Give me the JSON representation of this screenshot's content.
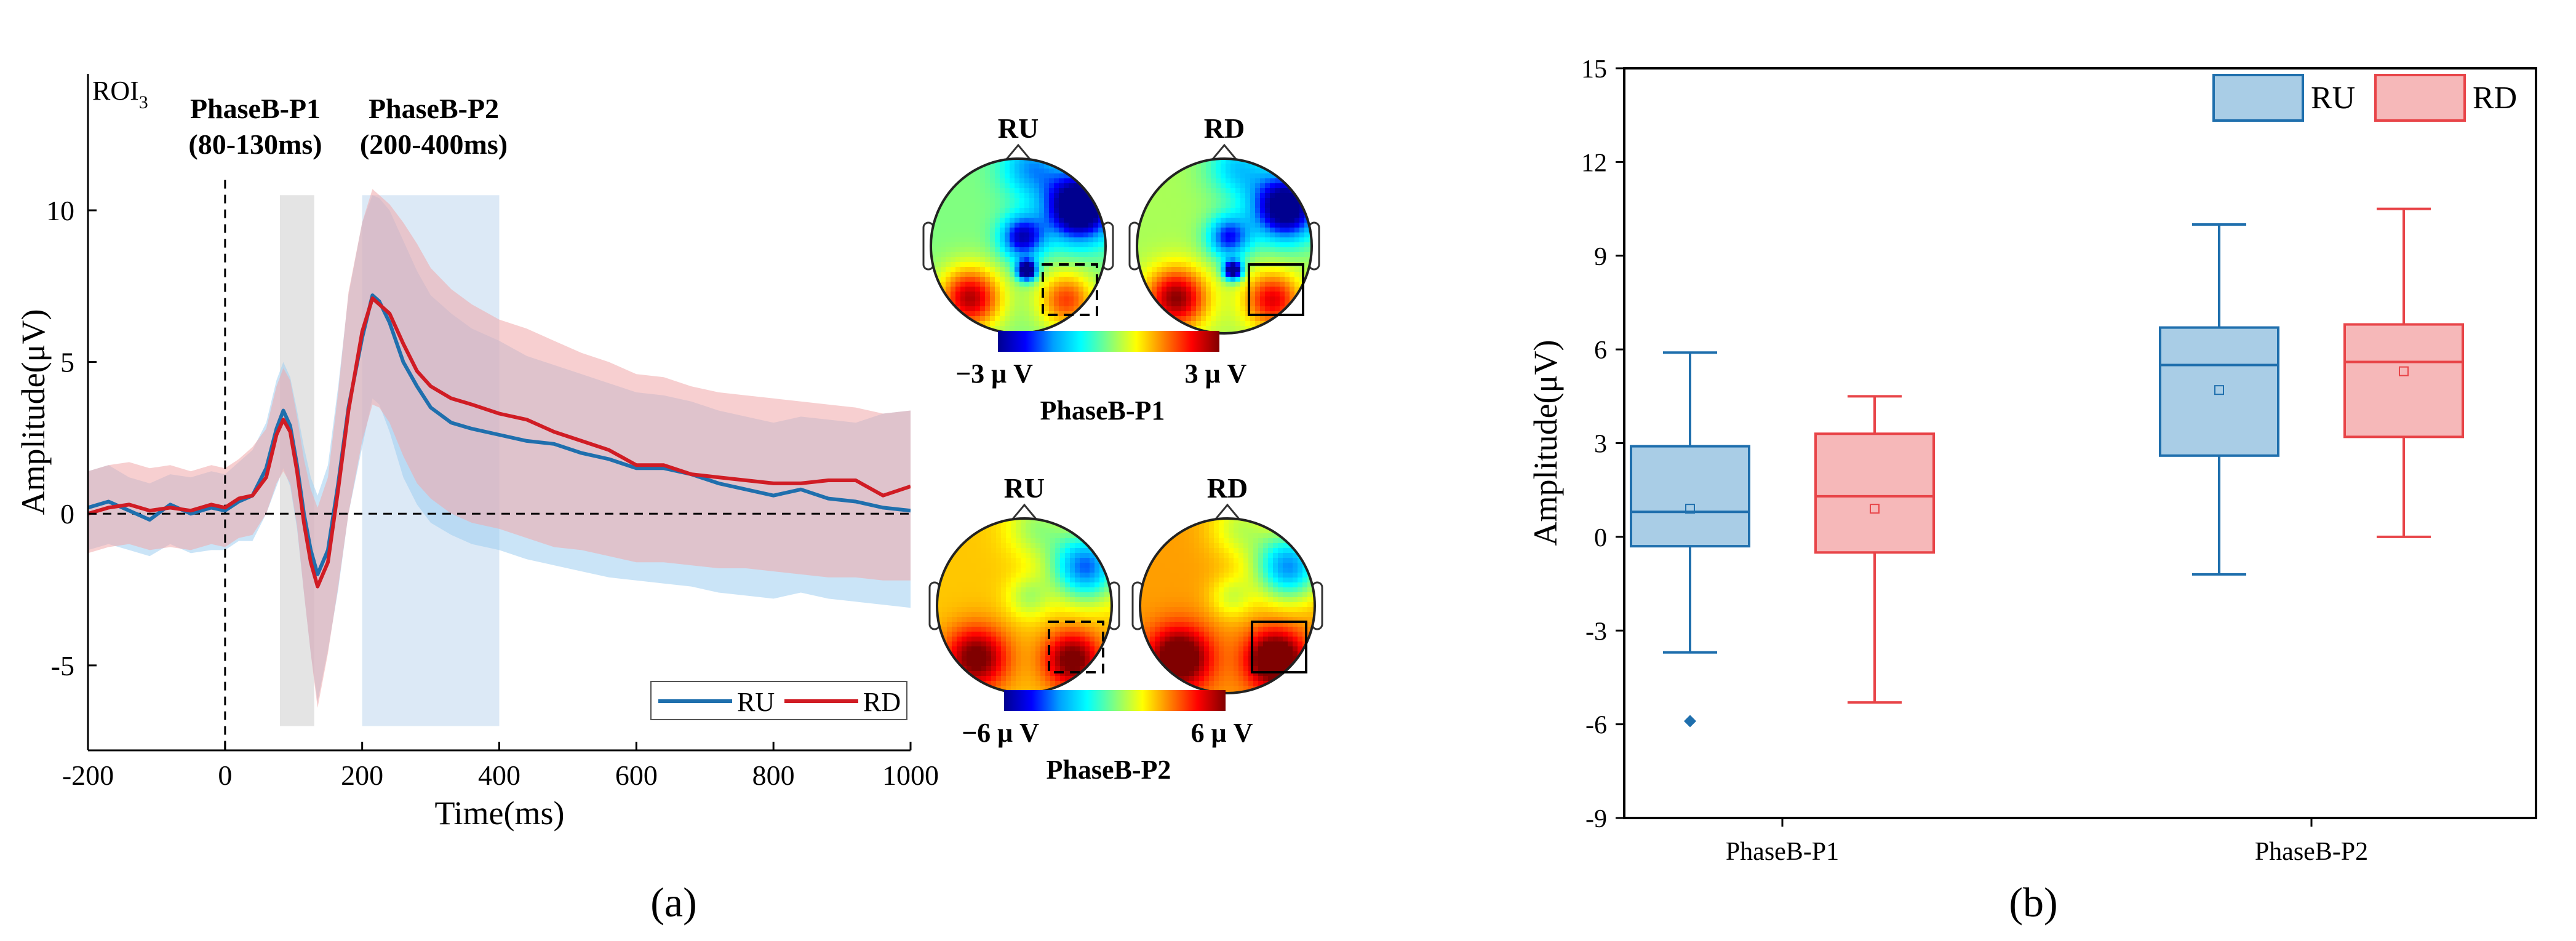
{
  "chart_data": [
    {
      "panel_label": "(a)",
      "type": "line",
      "corner_label": {
        "main": "ROI",
        "sub": "3"
      },
      "xlabel": "Time(ms)",
      "ylabel": "Amplitude(μV)",
      "xlim": [
        -200,
        1000
      ],
      "ylim": [
        -7.8,
        14.5
      ],
      "xticks": [
        -200,
        0,
        200,
        400,
        600,
        800,
        1000
      ],
      "yticks": [
        -5,
        0,
        5,
        10
      ],
      "xtick_labels": [
        "-200",
        "0",
        "200",
        "400",
        "600",
        "800",
        "1000"
      ],
      "ytick_labels": [
        "-5",
        "0",
        "5",
        "10"
      ],
      "onset_x": 0,
      "baseline_y": 0,
      "windows": [
        {
          "label": "PhaseB-P1",
          "range_label": "(80-130ms)",
          "range": [
            80,
            130
          ],
          "color": "#e4e4e4"
        },
        {
          "label": "PhaseB-P2",
          "range_label": "(200-400ms)",
          "range": [
            200,
            400
          ],
          "color": "#dce9f6"
        }
      ],
      "legend": {
        "entries": [
          "RU",
          "RD"
        ],
        "position": "bottom-right"
      },
      "series": [
        {
          "name": "RU",
          "color": "#1f6fad",
          "band_color": "#9fcdf0",
          "x": [
            -200,
            -170,
            -140,
            -110,
            -80,
            -50,
            -20,
            0,
            20,
            40,
            60,
            75,
            85,
            95,
            105,
            115,
            125,
            135,
            150,
            165,
            180,
            200,
            215,
            225,
            240,
            260,
            280,
            300,
            330,
            360,
            400,
            440,
            480,
            520,
            560,
            600,
            640,
            680,
            720,
            760,
            800,
            840,
            880,
            920,
            960,
            1000
          ],
          "mean": [
            0.2,
            0.4,
            0.1,
            -0.2,
            0.3,
            0.0,
            0.2,
            0.1,
            0.4,
            0.6,
            1.5,
            2.8,
            3.4,
            2.9,
            1.6,
            0.0,
            -1.2,
            -2.0,
            -1.2,
            1.0,
            3.5,
            5.8,
            7.2,
            7.0,
            6.3,
            5.0,
            4.2,
            3.5,
            3.0,
            2.8,
            2.6,
            2.4,
            2.3,
            2.0,
            1.8,
            1.5,
            1.5,
            1.3,
            1.0,
            0.8,
            0.6,
            0.8,
            0.5,
            0.4,
            0.2,
            0.1
          ],
          "upper": [
            1.4,
            1.6,
            1.2,
            1.0,
            1.3,
            1.2,
            1.4,
            1.3,
            1.7,
            2.1,
            3.0,
            4.4,
            5.0,
            4.5,
            3.4,
            2.2,
            1.2,
            0.6,
            1.6,
            4.2,
            7.2,
            9.6,
            10.5,
            10.4,
            10.0,
            9.0,
            8.0,
            7.2,
            6.6,
            6.1,
            5.7,
            5.2,
            4.9,
            4.6,
            4.3,
            4.0,
            3.9,
            3.7,
            3.4,
            3.2,
            3.0,
            3.2,
            3.1,
            3.0,
            3.3,
            3.4
          ],
          "lower": [
            -1.2,
            -1.0,
            -1.2,
            -1.4,
            -1.0,
            -1.3,
            -1.2,
            -1.2,
            -0.9,
            -0.9,
            0.0,
            0.9,
            1.5,
            0.9,
            -0.5,
            -2.6,
            -4.6,
            -6.2,
            -4.5,
            -2.5,
            0.0,
            2.2,
            3.8,
            3.6,
            2.7,
            1.2,
            0.3,
            -0.3,
            -0.7,
            -1.0,
            -1.2,
            -1.5,
            -1.7,
            -1.9,
            -2.1,
            -2.2,
            -2.3,
            -2.4,
            -2.6,
            -2.7,
            -2.8,
            -2.6,
            -2.8,
            -2.9,
            -3.0,
            -3.1
          ]
        },
        {
          "name": "RD",
          "color": "#d01c24",
          "band_color": "#f1a8aa",
          "x": [
            -200,
            -170,
            -140,
            -110,
            -80,
            -50,
            -20,
            0,
            20,
            40,
            60,
            75,
            85,
            95,
            105,
            115,
            125,
            135,
            150,
            165,
            180,
            200,
            215,
            225,
            240,
            260,
            280,
            300,
            330,
            360,
            400,
            440,
            480,
            520,
            560,
            600,
            640,
            680,
            720,
            760,
            800,
            840,
            880,
            920,
            960,
            1000
          ],
          "mean": [
            0.0,
            0.2,
            0.3,
            0.1,
            0.2,
            0.1,
            0.3,
            0.2,
            0.5,
            0.6,
            1.2,
            2.6,
            3.1,
            2.7,
            1.4,
            -0.3,
            -1.6,
            -2.4,
            -1.6,
            0.8,
            3.4,
            6.0,
            7.1,
            6.9,
            6.6,
            5.6,
            4.7,
            4.2,
            3.8,
            3.6,
            3.3,
            3.1,
            2.7,
            2.4,
            2.1,
            1.6,
            1.6,
            1.3,
            1.2,
            1.1,
            1.0,
            1.0,
            1.1,
            1.1,
            0.6,
            0.9
          ],
          "upper": [
            1.4,
            1.6,
            1.7,
            1.5,
            1.6,
            1.4,
            1.6,
            1.5,
            1.8,
            2.2,
            2.8,
            4.2,
            4.8,
            4.4,
            3.2,
            1.8,
            0.8,
            0.2,
            1.2,
            4.0,
            7.3,
            9.6,
            10.7,
            10.5,
            10.2,
            9.6,
            8.9,
            8.1,
            7.4,
            6.9,
            6.4,
            6.1,
            5.7,
            5.3,
            5.0,
            4.6,
            4.5,
            4.2,
            4.0,
            3.9,
            3.8,
            3.7,
            3.6,
            3.5,
            3.3,
            3.4
          ],
          "lower": [
            -1.3,
            -1.1,
            -1.0,
            -1.2,
            -1.1,
            -1.2,
            -1.0,
            -1.1,
            -0.8,
            -0.7,
            0.0,
            1.0,
            1.4,
            1.0,
            -0.4,
            -2.6,
            -4.6,
            -6.4,
            -4.6,
            -2.4,
            0.0,
            2.4,
            3.6,
            3.5,
            3.0,
            1.9,
            1.0,
            0.5,
            0.0,
            -0.3,
            -0.5,
            -0.8,
            -1.1,
            -1.2,
            -1.4,
            -1.6,
            -1.6,
            -1.7,
            -1.8,
            -1.8,
            -1.9,
            -2.0,
            -2.1,
            -2.1,
            -2.2,
            -2.2
          ]
        }
      ]
    },
    {
      "type": "heatmap",
      "description_of_panel": "scalp topographies",
      "column_labels": [
        "RU",
        "RD"
      ],
      "rows": [
        {
          "label": "PhaseB-P1",
          "scale_min_label": "−3 μ V",
          "scale_max_label": "3 μ V",
          "range": [
            -3,
            3
          ]
        },
        {
          "label": "PhaseB-P2",
          "scale_min_label": "−6 μ V",
          "scale_max_label": "6 μ V",
          "range": [
            -6,
            6
          ]
        }
      ],
      "colormap": [
        "#00008f",
        "#0000ff",
        "#00a0ff",
        "#00ffff",
        "#80ff80",
        "#ffff00",
        "#ff8000",
        "#ff0000",
        "#800000"
      ]
    },
    {
      "panel_label": "(b)",
      "type": "box",
      "ylabel": "Amplitude(μV)",
      "ylim": [
        -9,
        15
      ],
      "yticks": [
        -9,
        -6,
        -3,
        0,
        3,
        6,
        9,
        12,
        15
      ],
      "ytick_labels": [
        "-9",
        "-6",
        "-3",
        "0",
        "3",
        "6",
        "9",
        "12",
        "15"
      ],
      "categories": [
        "PhaseB-P1",
        "PhaseB-P2"
      ],
      "legend": {
        "entries": [
          "RU",
          "RD"
        ],
        "position": "top-right"
      },
      "series": [
        {
          "name": "RU",
          "color": "#1f6fad",
          "fill": "#a9cde6",
          "boxes": [
            {
              "whisker_low": -3.7,
              "q1": -0.3,
              "median": 0.8,
              "q3": 2.9,
              "whisker_high": 5.9,
              "mean": 0.9,
              "outliers": [
                -5.9
              ]
            },
            {
              "whisker_low": -1.2,
              "q1": 2.6,
              "median": 5.5,
              "q3": 6.7,
              "whisker_high": 10.0,
              "mean": 4.7,
              "outliers": []
            }
          ]
        },
        {
          "name": "RD",
          "color": "#e84448",
          "fill": "#f6b8b9",
          "boxes": [
            {
              "whisker_low": -5.3,
              "q1": -0.5,
              "median": 1.3,
              "q3": 3.3,
              "whisker_high": 4.5,
              "mean": 0.9,
              "outliers": []
            },
            {
              "whisker_low": 0.0,
              "q1": 3.2,
              "median": 5.6,
              "q3": 6.8,
              "whisker_high": 10.5,
              "mean": 5.3,
              "outliers": []
            }
          ]
        }
      ]
    }
  ]
}
